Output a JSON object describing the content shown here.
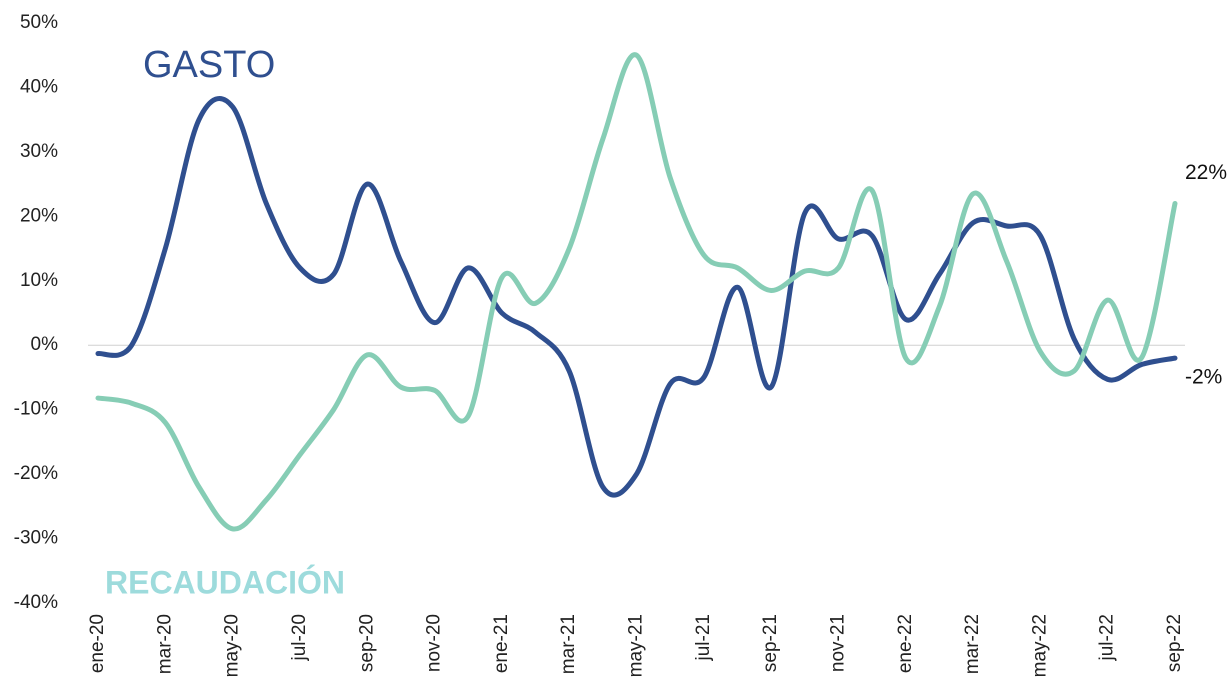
{
  "chart_data": {
    "type": "line",
    "categories": [
      "ene-20",
      null,
      "mar-20",
      null,
      "may-20",
      null,
      "jul-20",
      null,
      "sep-20",
      null,
      "nov-20",
      null,
      "ene-21",
      null,
      "mar-21",
      null,
      "may-21",
      null,
      "jul-21",
      null,
      "sep-21",
      null,
      "nov-21",
      null,
      "ene-22",
      null,
      "mar-22",
      null,
      "may-22",
      null,
      "jul-22",
      null,
      "sep-22"
    ],
    "series": [
      {
        "name": "GASTO",
        "color": "#2f4f8f",
        "values": [
          -1.3,
          0,
          15,
          35,
          37,
          22,
          12,
          11,
          25,
          13,
          3.5,
          12,
          5,
          2,
          -4,
          -22,
          -20,
          -6,
          -5,
          9,
          -6.5,
          20.5,
          16.5,
          17,
          4,
          11,
          19,
          18.5,
          17,
          1,
          -5.3,
          -3,
          -2
        ],
        "value_labels": [
          null,
          null,
          null,
          null,
          null,
          null,
          null,
          null,
          null,
          null,
          null,
          null,
          null,
          null,
          null,
          null,
          null,
          null,
          null,
          null,
          null,
          null,
          null,
          null,
          null,
          null,
          null,
          null,
          null,
          null,
          null,
          null,
          "-2%"
        ]
      },
      {
        "name": "RECAUDACIÓN",
        "color": "#86cdb5",
        "values": [
          -8.2,
          -9,
          -12,
          -22,
          -28.5,
          -24,
          -17,
          -10,
          -1.5,
          -6.5,
          -7,
          -11,
          10.5,
          6.5,
          15,
          32,
          45,
          26,
          14,
          12,
          8.5,
          11.5,
          12,
          24,
          -2,
          6,
          23.5,
          13,
          -1,
          -4,
          7,
          -2,
          22
        ],
        "value_labels": [
          null,
          null,
          null,
          null,
          null,
          null,
          null,
          null,
          null,
          null,
          null,
          null,
          null,
          null,
          null,
          null,
          null,
          null,
          null,
          null,
          null,
          null,
          null,
          null,
          null,
          null,
          null,
          null,
          null,
          null,
          null,
          null,
          "22%"
        ]
      }
    ],
    "ylim": [
      -40,
      50
    ],
    "yticks": [
      {
        "value": -40,
        "label": "-40%"
      },
      {
        "value": -30,
        "label": "-30%"
      },
      {
        "value": -20,
        "label": "-20%"
      },
      {
        "value": -10,
        "label": "-10%"
      },
      {
        "value": 0,
        "label": "0%"
      },
      {
        "value": 10,
        "label": "10%"
      },
      {
        "value": 20,
        "label": "20%"
      },
      {
        "value": 30,
        "label": "30%"
      },
      {
        "value": 40,
        "label": "40%"
      },
      {
        "value": 50,
        "label": "50%"
      }
    ],
    "grid": false
  }
}
